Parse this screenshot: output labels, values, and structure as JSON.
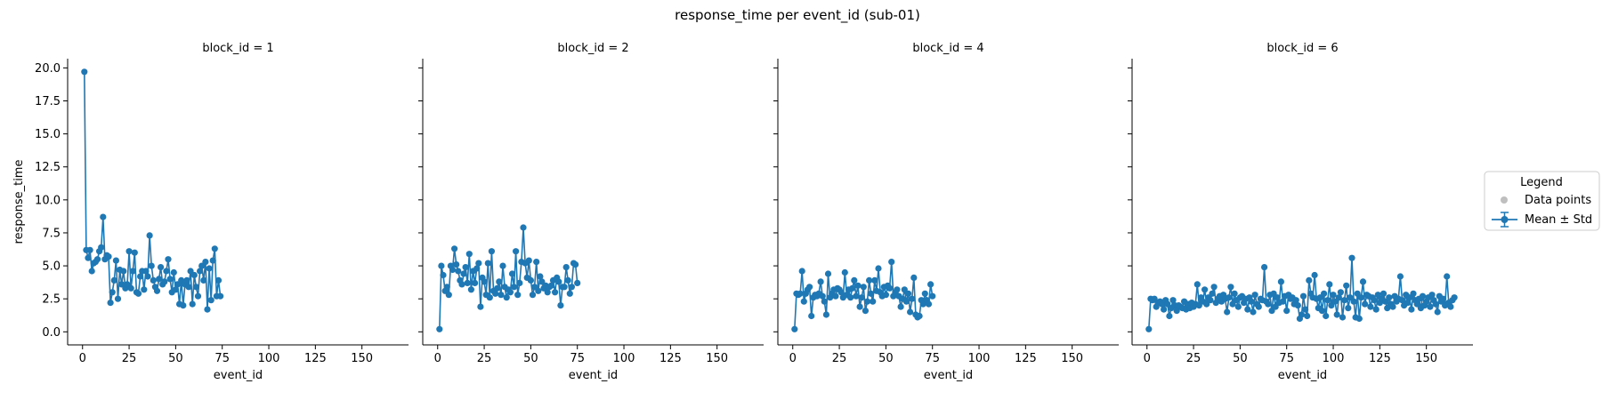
{
  "figure": {
    "title": "response_time per event_id (sub-01)",
    "legend_title": "Legend",
    "legend_items": [
      {
        "label": "Data points",
        "color": "#bfbfbf"
      },
      {
        "label": "Mean ± Std",
        "color": "#1f77b4"
      }
    ]
  },
  "chart_data": {
    "type": "line",
    "title": "response_time per event_id (sub-01)",
    "xlabel": "event_id",
    "ylabel": "response_time",
    "xlim": [
      -8,
      175
    ],
    "ylim": [
      -0.99,
      20.7
    ],
    "xticks": [
      "0",
      "25",
      "50",
      "75",
      "100",
      "125",
      "150"
    ],
    "yticks": [
      "0.0",
      "2.5",
      "5.0",
      "7.5",
      "10.0",
      "12.5",
      "15.0",
      "17.5",
      "20.0"
    ],
    "grid": false,
    "legend_position": "right",
    "color": "#1f77b4",
    "panels": [
      {
        "title": "block_id = 1",
        "x": [
          1,
          2,
          3,
          4,
          5,
          6,
          7,
          8,
          9,
          10,
          11,
          12,
          13,
          14,
          15,
          16,
          17,
          18,
          19,
          20,
          21,
          22,
          23,
          24,
          25,
          26,
          27,
          28,
          29,
          30,
          31,
          32,
          33,
          34,
          35,
          36,
          37,
          38,
          39,
          40,
          41,
          42,
          43,
          44,
          45,
          46,
          47,
          48,
          49,
          50,
          51,
          52,
          53,
          54,
          55,
          56,
          57,
          58,
          59,
          60,
          61,
          62,
          63,
          64,
          65,
          66,
          67,
          68,
          69,
          70,
          71,
          72,
          73,
          74
        ],
        "y": [
          19.7,
          6.2,
          5.6,
          6.2,
          4.6,
          5.2,
          5.3,
          5.5,
          6.1,
          6.4,
          8.7,
          5.5,
          5.8,
          5.7,
          2.2,
          3.0,
          3.9,
          5.4,
          2.5,
          4.7,
          3.6,
          4.6,
          3.3,
          3.6,
          6.1,
          3.3,
          4.6,
          6.0,
          3.0,
          2.9,
          4.2,
          4.6,
          3.2,
          4.6,
          4.2,
          7.3,
          5.0,
          3.9,
          3.4,
          3.1,
          4.0,
          4.9,
          3.6,
          3.8,
          4.6,
          5.5,
          4.0,
          3.0,
          4.5,
          3.2,
          3.6,
          2.1,
          3.9,
          2.0,
          3.6,
          3.9,
          3.4,
          4.6,
          2.1,
          4.3,
          3.4,
          2.7,
          4.6,
          5.0,
          3.9,
          5.3,
          1.7,
          4.8,
          2.4,
          5.4,
          6.3,
          2.7,
          3.9,
          2.7
        ]
      },
      {
        "title": "block_id = 2",
        "x": [
          1,
          2,
          3,
          4,
          5,
          6,
          7,
          8,
          9,
          10,
          11,
          12,
          13,
          14,
          15,
          16,
          17,
          18,
          19,
          20,
          21,
          22,
          23,
          24,
          25,
          26,
          27,
          28,
          29,
          30,
          31,
          32,
          33,
          34,
          35,
          36,
          37,
          38,
          39,
          40,
          41,
          42,
          43,
          44,
          45,
          46,
          47,
          48,
          49,
          50,
          51,
          52,
          53,
          54,
          55,
          56,
          57,
          58,
          59,
          60,
          61,
          62,
          63,
          64,
          65,
          66,
          67,
          68,
          69,
          70,
          71,
          72,
          73,
          74,
          75
        ],
        "y": [
          0.2,
          5.0,
          4.3,
          3.1,
          3.4,
          2.8,
          5.0,
          4.7,
          6.3,
          5.1,
          4.6,
          3.9,
          3.6,
          4.4,
          4.9,
          3.7,
          5.9,
          3.2,
          4.6,
          3.7,
          4.8,
          5.2,
          1.9,
          4.1,
          3.8,
          2.8,
          5.2,
          2.6,
          6.1,
          3.1,
          2.9,
          3.3,
          3.8,
          2.8,
          5.0,
          3.4,
          2.6,
          3.2,
          3.0,
          4.4,
          3.4,
          6.1,
          2.8,
          3.7,
          5.3,
          7.9,
          5.2,
          4.1,
          5.4,
          3.9,
          2.8,
          3.4,
          5.3,
          3.1,
          4.2,
          3.8,
          3.3,
          3.5,
          3.0,
          3.4,
          3.5,
          3.9,
          3.0,
          4.1,
          3.8,
          2.0,
          3.4,
          3.4,
          4.9,
          3.9,
          2.9,
          3.4,
          5.2,
          5.1,
          3.7
        ]
      },
      {
        "title": "block_id = 4",
        "x": [
          1,
          2,
          3,
          4,
          5,
          6,
          7,
          8,
          9,
          10,
          11,
          12,
          13,
          14,
          15,
          16,
          17,
          18,
          19,
          20,
          21,
          22,
          23,
          24,
          25,
          26,
          27,
          28,
          29,
          30,
          31,
          32,
          33,
          34,
          35,
          36,
          37,
          38,
          39,
          40,
          41,
          42,
          43,
          44,
          45,
          46,
          47,
          48,
          49,
          50,
          51,
          52,
          53,
          54,
          55,
          56,
          57,
          58,
          59,
          60,
          61,
          62,
          63,
          64,
          65,
          66,
          67,
          68,
          69,
          70,
          71,
          72,
          73,
          74,
          75
        ],
        "y": [
          0.2,
          2.9,
          2.8,
          2.9,
          4.6,
          2.3,
          2.9,
          3.2,
          3.4,
          1.2,
          2.6,
          2.8,
          2.7,
          2.9,
          3.8,
          2.7,
          2.3,
          1.3,
          4.4,
          2.6,
          2.9,
          3.2,
          2.7,
          3.3,
          3.2,
          3.0,
          2.6,
          4.5,
          2.8,
          3.2,
          2.6,
          3.3,
          3.9,
          2.7,
          3.5,
          1.9,
          2.6,
          3.4,
          1.6,
          2.3,
          3.9,
          2.9,
          2.3,
          3.9,
          3.1,
          4.8,
          3.0,
          2.7,
          3.4,
          2.8,
          3.5,
          3.3,
          5.3,
          2.7,
          3.0,
          3.2,
          2.7,
          1.9,
          2.5,
          3.2,
          2.3,
          2.9,
          1.5,
          2.5,
          4.1,
          1.3,
          1.1,
          1.2,
          2.4,
          2.1,
          2.9,
          2.4,
          2.1,
          3.6,
          2.7
        ]
      },
      {
        "title": "block_id = 6",
        "x": [
          1,
          2,
          3,
          4,
          5,
          6,
          7,
          8,
          9,
          10,
          11,
          12,
          13,
          14,
          15,
          16,
          17,
          18,
          19,
          20,
          21,
          22,
          23,
          24,
          25,
          26,
          27,
          28,
          29,
          30,
          31,
          32,
          33,
          34,
          35,
          36,
          37,
          38,
          39,
          40,
          41,
          42,
          43,
          44,
          45,
          46,
          47,
          48,
          49,
          50,
          51,
          52,
          53,
          54,
          55,
          56,
          57,
          58,
          59,
          60,
          61,
          62,
          63,
          64,
          65,
          66,
          67,
          68,
          69,
          70,
          71,
          72,
          73,
          74,
          75,
          76,
          77,
          78,
          79,
          80,
          81,
          82,
          83,
          84,
          85,
          86,
          87,
          88,
          89,
          90,
          91,
          92,
          93,
          94,
          95,
          96,
          97,
          98,
          99,
          100,
          101,
          102,
          103,
          104,
          105,
          106,
          107,
          108,
          109,
          110,
          111,
          112,
          113,
          114,
          115,
          116,
          117,
          118,
          119,
          120,
          121,
          122,
          123,
          124,
          125,
          126,
          127,
          128,
          129,
          130,
          131,
          132,
          133,
          134,
          135,
          136,
          137,
          138,
          139,
          140,
          141,
          142,
          143,
          144,
          145,
          146,
          147,
          148,
          149,
          150,
          151,
          152,
          153,
          154,
          155,
          156,
          157,
          158,
          159,
          160,
          161,
          162,
          163,
          164,
          165
        ],
        "y": [
          0.2,
          2.5,
          2.4,
          2.5,
          1.9,
          2.2,
          2.3,
          2.1,
          1.7,
          2.4,
          2.1,
          1.2,
          1.8,
          2.4,
          2.0,
          1.6,
          2.0,
          1.9,
          1.8,
          2.3,
          1.7,
          2.1,
          1.8,
          2.2,
          1.9,
          2.1,
          3.6,
          2.0,
          2.6,
          2.3,
          3.2,
          2.1,
          2.6,
          2.4,
          2.9,
          3.4,
          2.2,
          2.5,
          2.7,
          2.3,
          2.8,
          2.5,
          1.5,
          2.6,
          3.4,
          2.1,
          2.9,
          2.4,
          1.9,
          2.6,
          2.7,
          2.2,
          2.5,
          1.7,
          2.6,
          2.3,
          1.5,
          2.8,
          2.1,
          1.9,
          2.5,
          2.4,
          4.9,
          2.3,
          2.1,
          2.8,
          1.6,
          2.9,
          1.9,
          2.6,
          2.2,
          3.8,
          2.3,
          2.7,
          1.6,
          2.8,
          2.5,
          2.6,
          2.1,
          2.4,
          2.0,
          1.0,
          1.3,
          2.7,
          1.7,
          1.2,
          3.9,
          2.9,
          2.6,
          4.3,
          2.5,
          1.8,
          2.6,
          1.6,
          2.9,
          1.2,
          2.4,
          3.6,
          2.0,
          2.8,
          2.3,
          1.3,
          2.6,
          3.0,
          1.1,
          2.4,
          3.5,
          1.8,
          2.6,
          5.6,
          2.3,
          1.1,
          2.9,
          1.0,
          2.6,
          3.8,
          2.1,
          2.8,
          2.7,
          1.9,
          2.6,
          2.4,
          1.7,
          2.8,
          2.2,
          2.5,
          2.9,
          2.3,
          1.8,
          2.6,
          2.1,
          1.9,
          2.7,
          2.3,
          2.5,
          4.2,
          2.4,
          2.0,
          2.8,
          2.2,
          2.6,
          1.7,
          2.9,
          2.4,
          2.1,
          2.5,
          1.8,
          2.7,
          2.0,
          2.3,
          2.6,
          1.9,
          2.8,
          2.4,
          2.1,
          1.5,
          2.7,
          2.3,
          2.5,
          2.0,
          4.2,
          2.2,
          1.9,
          2.4,
          2.6
        ]
      }
    ]
  }
}
